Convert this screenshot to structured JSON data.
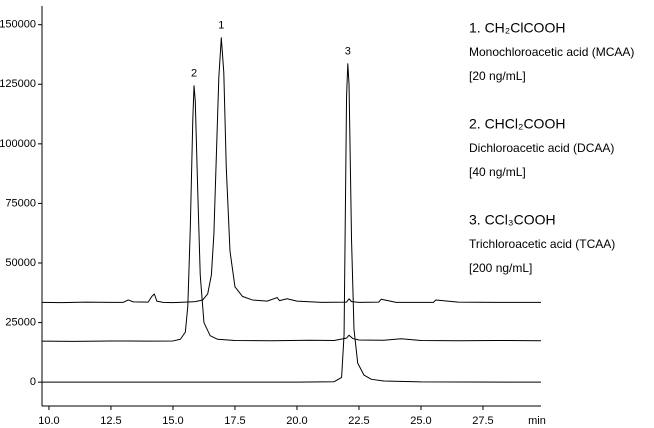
{
  "chart_data": {
    "type": "line",
    "x_label": "min",
    "xlim": [
      9.72,
      29.84
    ],
    "xticks": [
      {
        "value": 10,
        "label": "10.0"
      },
      12.5,
      {
        "value": 15,
        "label": "15.0"
      },
      17.5,
      {
        "value": 20,
        "label": "20.0"
      },
      22.5,
      {
        "value": 25,
        "label": "25.0"
      },
      27.5
    ],
    "ylim": [
      -10000,
      157000
    ],
    "yticks": [
      0,
      25000,
      50000,
      75000,
      100000,
      125000,
      150000
    ],
    "series": [
      {
        "name": "1",
        "color": "#000000",
        "x": [
          9.7,
          10.5,
          11.5,
          12.5,
          13.0,
          13.2,
          13.4,
          14.0,
          14.15,
          14.25,
          14.35,
          14.6,
          15.0,
          15.5,
          15.9,
          16.2,
          16.4,
          16.55,
          16.65,
          16.75,
          16.85,
          16.95,
          17.05,
          17.15,
          17.3,
          17.5,
          17.8,
          18.2,
          18.8,
          19.2,
          19.3,
          19.6,
          20.0,
          21.0,
          22.0,
          22.1,
          22.2,
          22.5,
          23.3,
          23.4,
          24.0,
          25.5,
          25.6,
          26.5,
          28.0,
          29.84
        ],
        "values": [
          33500,
          33400,
          33600,
          33500,
          33500,
          34500,
          33700,
          33600,
          36000,
          37000,
          34000,
          33500,
          33400,
          33600,
          33800,
          34500,
          37000,
          45000,
          62000,
          95000,
          128000,
          144500,
          130000,
          90000,
          55000,
          40000,
          36000,
          34500,
          34000,
          35500,
          34200,
          35000,
          34000,
          33500,
          33600,
          35000,
          33800,
          33500,
          33600,
          34800,
          33500,
          33500,
          34500,
          33600,
          33500,
          33500
        ]
      },
      {
        "name": "2",
        "color": "#000000",
        "x": [
          9.7,
          11.0,
          12.5,
          14.0,
          15.0,
          15.3,
          15.5,
          15.6,
          15.7,
          15.8,
          15.85,
          15.9,
          16.0,
          16.1,
          16.25,
          16.5,
          16.8,
          17.5,
          19.0,
          20.5,
          21.5,
          22.0,
          22.1,
          22.25,
          22.5,
          23.5,
          24.2,
          25.0,
          26.5,
          28.0,
          29.84
        ],
        "values": [
          17200,
          17100,
          17300,
          17200,
          17300,
          18000,
          21000,
          32000,
          65000,
          110000,
          124400,
          118000,
          80000,
          45000,
          25000,
          19500,
          18000,
          17500,
          17400,
          17600,
          17500,
          18500,
          19700,
          18300,
          17700,
          17600,
          18200,
          17500,
          17400,
          17500,
          17400
        ]
      },
      {
        "name": "3",
        "color": "#000000",
        "x": [
          9.7,
          15.0,
          20.0,
          21.5,
          21.8,
          21.9,
          21.95,
          22.0,
          22.05,
          22.1,
          22.2,
          22.3,
          22.45,
          22.7,
          23.0,
          23.5,
          25.0,
          29.84
        ],
        "values": [
          0,
          0,
          0,
          200,
          2000,
          20000,
          70000,
          120000,
          133600,
          125000,
          60000,
          22000,
          8000,
          3000,
          1200,
          500,
          100,
          0
        ]
      }
    ],
    "compounds": [
      {
        "formula": "1. CH₂ClCOOH",
        "name": "Monochloroacetic acid (MCAA)",
        "concentration": "[20 ng/mL]"
      },
      {
        "formula": "2. CHCl₂COOH",
        "name": "Dichloroacetic acid (DCAA)",
        "concentration": "[40 ng/mL]"
      },
      {
        "formula": "3. CCl₃COOH",
        "name": "Trichloroacetic acid (TCAA)",
        "concentration": "[200 ng/mL]"
      }
    ]
  }
}
